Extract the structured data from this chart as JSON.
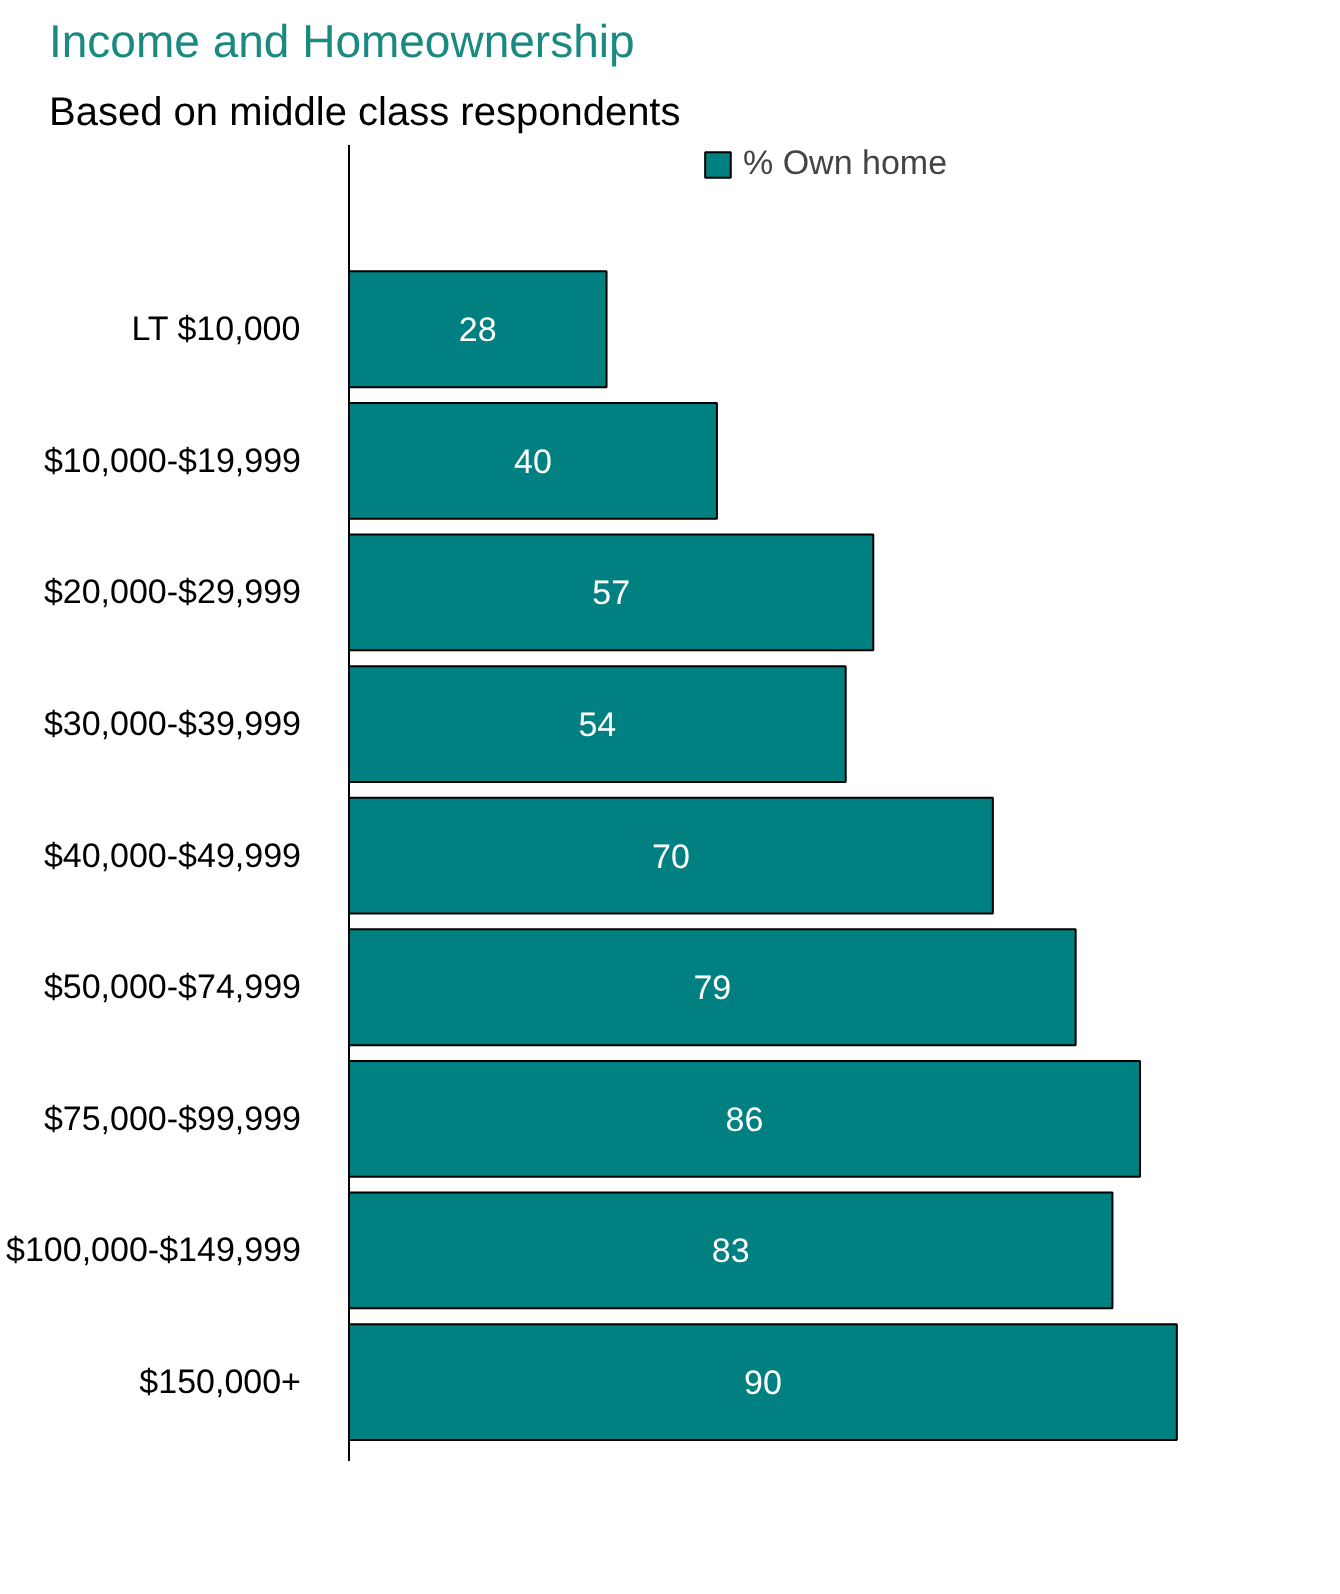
{
  "chart_data": {
    "type": "bar",
    "orientation": "horizontal",
    "title": "Income and Homeownership",
    "subtitle": "Based on middle class respondents",
    "categories": [
      "LT $10,000",
      "$10,000-$19,999",
      "$20,000-$29,999",
      "$30,000-$39,999",
      "$40,000-$49,999",
      "$50,000-$74,999",
      "$75,000-$99,999",
      "$100,000-$149,999",
      "$150,000+"
    ],
    "series": [
      {
        "name": "% Own home",
        "color": "#008080",
        "values": [
          28,
          40,
          57,
          54,
          70,
          79,
          86,
          83,
          90
        ]
      }
    ],
    "data_labels": true,
    "legend": "top",
    "grid": false
  }
}
